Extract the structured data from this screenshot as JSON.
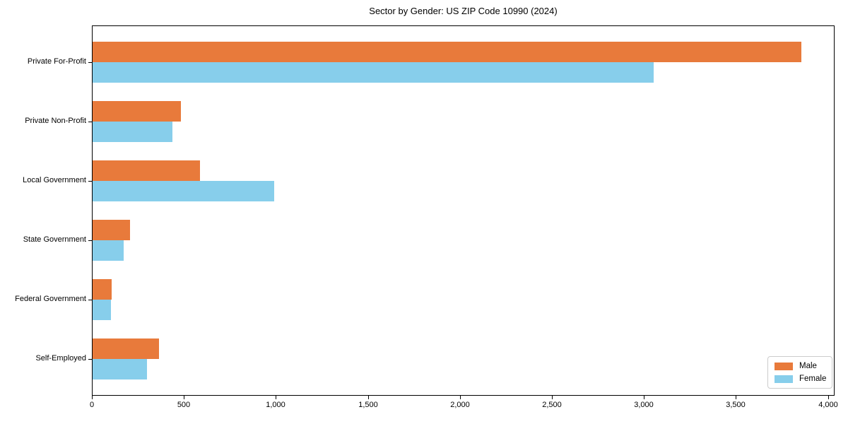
{
  "title": "Sector by Gender: US ZIP Code 10990 (2024)",
  "colors": {
    "male": "#E87A3B",
    "female": "#87CEEB",
    "axis": "#000000",
    "legend_border": "#cccccc",
    "background": "#ffffff"
  },
  "legend": {
    "position": "lower right",
    "items": [
      {
        "label": "Male"
      },
      {
        "label": "Female"
      }
    ]
  },
  "chart_data": {
    "type": "bar",
    "orientation": "horizontal",
    "title": "Sector by Gender: US ZIP Code 10990 (2024)",
    "categories": [
      "Private For-Profit",
      "Private Non-Profit",
      "Local Government",
      "State Government",
      "Federal Government",
      "Self-Employed"
    ],
    "series": [
      {
        "name": "Male",
        "color": "#E87A3B",
        "values": [
          3850,
          480,
          585,
          205,
          105,
          360
        ]
      },
      {
        "name": "Female",
        "color": "#87CEEB",
        "values": [
          3050,
          435,
          985,
          170,
          100,
          295
        ]
      }
    ],
    "xlabel": "",
    "ylabel": "",
    "xlim": [
      0,
      4036
    ],
    "x_ticks": [
      0,
      500,
      1000,
      1500,
      2000,
      2500,
      3000,
      3500,
      4000
    ],
    "x_tick_labels": [
      "0",
      "500",
      "1,000",
      "1,500",
      "2,000",
      "2,500",
      "3,000",
      "3,500",
      "4,000"
    ],
    "grid": false,
    "legend_position": "lower right"
  }
}
